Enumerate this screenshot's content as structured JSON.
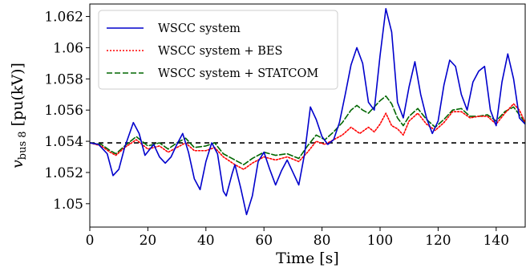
{
  "chart_data": {
    "type": "line",
    "xlabel": "Time [s]",
    "ylabel_main": "v",
    "ylabel_sub": "bus 8",
    "ylabel_unit": " [pu(kV)]",
    "xlim": [
      0,
      150
    ],
    "ylim": [
      1.0485,
      1.0628
    ],
    "xticks": [
      0,
      20,
      40,
      60,
      80,
      100,
      120,
      140
    ],
    "yticks": [
      1.05,
      1.052,
      1.054,
      1.056,
      1.058,
      1.06,
      1.062
    ],
    "ytick_labels": [
      "1.05",
      "1.052",
      "1.054",
      "1.056",
      "1.058",
      "1.06",
      "1.062"
    ],
    "legend_position": "top-left",
    "grid": false,
    "reference_line": {
      "y": 1.0539,
      "color": "#000000",
      "style": "dashed"
    },
    "series": [
      {
        "name": "WSCC system",
        "color": "#0000cc",
        "style": "solid",
        "points": [
          [
            0,
            1.0539
          ],
          [
            3,
            1.0538
          ],
          [
            6,
            1.0532
          ],
          [
            8,
            1.0518
          ],
          [
            10,
            1.0522
          ],
          [
            12,
            1.0536
          ],
          [
            15,
            1.0552
          ],
          [
            17,
            1.0545
          ],
          [
            19,
            1.0531
          ],
          [
            22,
            1.0538
          ],
          [
            24,
            1.053
          ],
          [
            26,
            1.0526
          ],
          [
            28,
            1.053
          ],
          [
            30,
            1.0538
          ],
          [
            32,
            1.0545
          ],
          [
            34,
            1.0533
          ],
          [
            36,
            1.0516
          ],
          [
            38,
            1.0509
          ],
          [
            40,
            1.0527
          ],
          [
            42,
            1.0539
          ],
          [
            44,
            1.0532
          ],
          [
            46,
            1.0508
          ],
          [
            47,
            1.0505
          ],
          [
            49,
            1.0519
          ],
          [
            50,
            1.0525
          ],
          [
            52,
            1.051
          ],
          [
            54,
            1.0493
          ],
          [
            56,
            1.0505
          ],
          [
            58,
            1.0527
          ],
          [
            60,
            1.0533
          ],
          [
            62,
            1.0522
          ],
          [
            64,
            1.0512
          ],
          [
            66,
            1.0521
          ],
          [
            68,
            1.0528
          ],
          [
            70,
            1.052
          ],
          [
            72,
            1.0512
          ],
          [
            74,
            1.0532
          ],
          [
            76,
            1.0562
          ],
          [
            78,
            1.0554
          ],
          [
            80,
            1.0543
          ],
          [
            82,
            1.0538
          ],
          [
            84,
            1.0541
          ],
          [
            86,
            1.0552
          ],
          [
            88,
            1.057
          ],
          [
            90,
            1.0589
          ],
          [
            92,
            1.06
          ],
          [
            94,
            1.059
          ],
          [
            96,
            1.0565
          ],
          [
            98,
            1.056
          ],
          [
            100,
            1.0595
          ],
          [
            102,
            1.0625
          ],
          [
            104,
            1.061
          ],
          [
            106,
            1.0565
          ],
          [
            108,
            1.0555
          ],
          [
            110,
            1.0575
          ],
          [
            112,
            1.0591
          ],
          [
            114,
            1.057
          ],
          [
            116,
            1.0555
          ],
          [
            118,
            1.0545
          ],
          [
            120,
            1.0553
          ],
          [
            122,
            1.0576
          ],
          [
            124,
            1.0592
          ],
          [
            126,
            1.0588
          ],
          [
            128,
            1.057
          ],
          [
            130,
            1.056
          ],
          [
            132,
            1.0578
          ],
          [
            134,
            1.0585
          ],
          [
            136,
            1.0588
          ],
          [
            138,
            1.056
          ],
          [
            140,
            1.055
          ],
          [
            142,
            1.0578
          ],
          [
            144,
            1.0596
          ],
          [
            146,
            1.058
          ],
          [
            148,
            1.0555
          ],
          [
            150,
            1.0551
          ]
        ]
      },
      {
        "name": "WSCC system + BES",
        "color": "#ff0000",
        "style": "dotted",
        "points": [
          [
            0,
            1.0539
          ],
          [
            4,
            1.0537
          ],
          [
            7,
            1.0533
          ],
          [
            9,
            1.0531
          ],
          [
            12,
            1.0536
          ],
          [
            16,
            1.0541
          ],
          [
            20,
            1.0535
          ],
          [
            24,
            1.0537
          ],
          [
            27,
            1.0533
          ],
          [
            30,
            1.0536
          ],
          [
            33,
            1.0539
          ],
          [
            36,
            1.0534
          ],
          [
            40,
            1.0534
          ],
          [
            43,
            1.0536
          ],
          [
            46,
            1.053
          ],
          [
            50,
            1.0525
          ],
          [
            53,
            1.0522
          ],
          [
            56,
            1.0526
          ],
          [
            60,
            1.053
          ],
          [
            64,
            1.0528
          ],
          [
            68,
            1.053
          ],
          [
            72,
            1.0527
          ],
          [
            75,
            1.0533
          ],
          [
            78,
            1.054
          ],
          [
            81,
            1.0538
          ],
          [
            84,
            1.0541
          ],
          [
            87,
            1.0544
          ],
          [
            90,
            1.0549
          ],
          [
            93,
            1.0545
          ],
          [
            96,
            1.0549
          ],
          [
            98,
            1.0546
          ],
          [
            100,
            1.0551
          ],
          [
            102,
            1.0558
          ],
          [
            104,
            1.055
          ],
          [
            106,
            1.0548
          ],
          [
            108,
            1.0544
          ],
          [
            110,
            1.0553
          ],
          [
            113,
            1.0558
          ],
          [
            116,
            1.0551
          ],
          [
            119,
            1.0547
          ],
          [
            122,
            1.0552
          ],
          [
            125,
            1.0559
          ],
          [
            128,
            1.0559
          ],
          [
            131,
            1.0555
          ],
          [
            134,
            1.0556
          ],
          [
            137,
            1.0556
          ],
          [
            140,
            1.0551
          ],
          [
            143,
            1.0558
          ],
          [
            146,
            1.0564
          ],
          [
            148,
            1.056
          ],
          [
            150,
            1.0552
          ]
        ]
      },
      {
        "name": "WSCC system + STATCOM",
        "color": "#006600",
        "style": "dashed",
        "points": [
          [
            0,
            1.0539
          ],
          [
            4,
            1.0538
          ],
          [
            7,
            1.0534
          ],
          [
            9,
            1.0532
          ],
          [
            12,
            1.0537
          ],
          [
            16,
            1.0543
          ],
          [
            20,
            1.0537
          ],
          [
            24,
            1.0539
          ],
          [
            27,
            1.0535
          ],
          [
            30,
            1.0539
          ],
          [
            33,
            1.0542
          ],
          [
            36,
            1.0536
          ],
          [
            40,
            1.0537
          ],
          [
            43,
            1.0539
          ],
          [
            46,
            1.0532
          ],
          [
            50,
            1.0528
          ],
          [
            53,
            1.0525
          ],
          [
            56,
            1.0529
          ],
          [
            60,
            1.0533
          ],
          [
            64,
            1.0531
          ],
          [
            68,
            1.0532
          ],
          [
            72,
            1.0529
          ],
          [
            75,
            1.0537
          ],
          [
            78,
            1.0544
          ],
          [
            81,
            1.0541
          ],
          [
            84,
            1.0546
          ],
          [
            87,
            1.0552
          ],
          [
            90,
            1.056
          ],
          [
            92,
            1.0563
          ],
          [
            94,
            1.056
          ],
          [
            96,
            1.0558
          ],
          [
            98,
            1.0562
          ],
          [
            100,
            1.0566
          ],
          [
            102,
            1.0569
          ],
          [
            104,
            1.0564
          ],
          [
            106,
            1.0555
          ],
          [
            108,
            1.055
          ],
          [
            110,
            1.0556
          ],
          [
            113,
            1.0561
          ],
          [
            116,
            1.0554
          ],
          [
            119,
            1.0549
          ],
          [
            122,
            1.0554
          ],
          [
            125,
            1.056
          ],
          [
            128,
            1.0561
          ],
          [
            131,
            1.0556
          ],
          [
            134,
            1.0556
          ],
          [
            137,
            1.0557
          ],
          [
            140,
            1.0553
          ],
          [
            143,
            1.0559
          ],
          [
            146,
            1.0562
          ],
          [
            148,
            1.0557
          ],
          [
            150,
            1.0552
          ]
        ]
      }
    ]
  }
}
